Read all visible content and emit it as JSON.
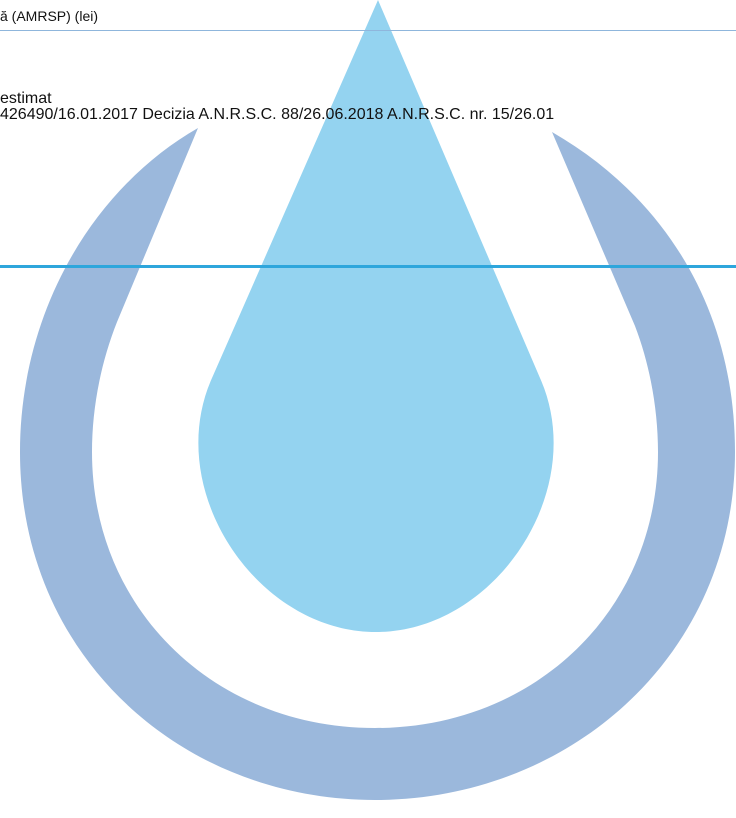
{
  "header": {
    "label": "ă (AMRSP) (lei)"
  },
  "content": {
    "estimat_label": "estimat",
    "decisions_text": "426490/16.01.2017 Decizia A.N.R.S.C. 88/26.06.2018 A.N.R.S.C. nr. 15/26.01"
  },
  "watermark": {
    "icon": "water-drop-in-ring-logo",
    "colors": {
      "drop": "#94d3f0",
      "ring": "#9bb8dc"
    }
  }
}
